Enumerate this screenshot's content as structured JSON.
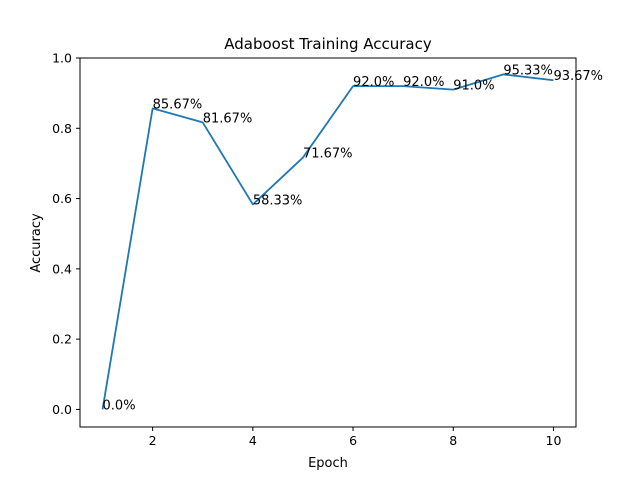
{
  "chart_data": {
    "type": "line",
    "title": "Adaboost Training Accuracy",
    "xlabel": "Epoch",
    "ylabel": "Accuracy",
    "x": [
      1,
      2,
      3,
      4,
      5,
      6,
      7,
      8,
      9,
      10
    ],
    "series": [
      {
        "values": [
          0.0,
          0.8567,
          0.8167,
          0.5833,
          0.7167,
          0.92,
          0.92,
          0.91,
          0.9533,
          0.9367
        ],
        "color": "#1f77b4"
      }
    ],
    "data_labels": [
      "0.0%",
      "85.67%",
      "81.67%",
      "58.33%",
      "71.67%",
      "92.0%",
      "92.0%",
      "91.0%",
      "95.33%",
      "93.67%"
    ],
    "xlim": [
      0.55,
      10.45
    ],
    "ylim": [
      -0.05,
      1.0
    ],
    "xticks": [
      2,
      4,
      6,
      8,
      10
    ],
    "yticks": [
      0.0,
      0.2,
      0.4,
      0.6,
      0.8,
      1.0
    ],
    "xtick_labels": [
      "2",
      "4",
      "6",
      "8",
      "10"
    ],
    "ytick_labels": [
      "0.0",
      "0.2",
      "0.4",
      "0.6",
      "0.8",
      "1.0"
    ],
    "grid": false,
    "legend": "none"
  }
}
